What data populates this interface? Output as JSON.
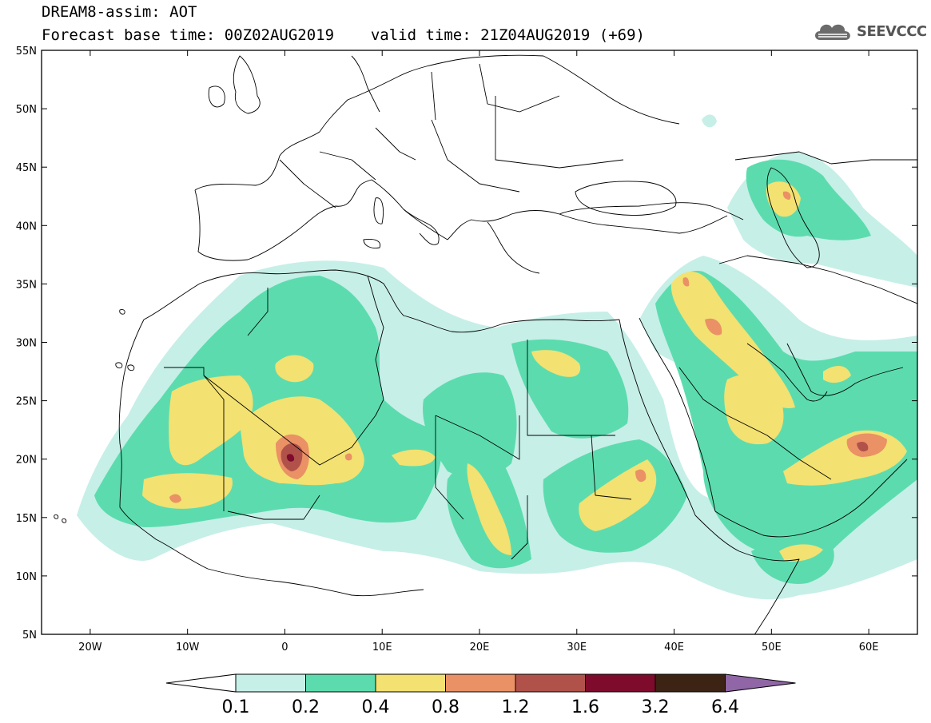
{
  "header": {
    "title_line1": "DREAM8-assim: AOT",
    "base_time": "Forecast base time: 00Z02AUG2019",
    "valid_time": "valid time: 21Z04AUG2019 (+69)"
  },
  "logo": {
    "text": "SEEVCCC",
    "icon": "cloud-icon"
  },
  "map": {
    "lon_range": [
      -25,
      65
    ],
    "lat_range": [
      5,
      55
    ],
    "lat_ticks": [
      "5N",
      "10N",
      "15N",
      "20N",
      "25N",
      "30N",
      "35N",
      "40N",
      "45N",
      "50N",
      "55N"
    ],
    "lon_ticks": [
      "20W",
      "10W",
      "0",
      "10E",
      "20E",
      "30E",
      "40E",
      "50E",
      "60E"
    ]
  },
  "colorbar": {
    "labels": [
      "0.1",
      "0.2",
      "0.4",
      "0.8",
      "1.2",
      "1.6",
      "3.2",
      "6.4"
    ],
    "colors": [
      "#ffffff",
      "#c6efe7",
      "#5cdcae",
      "#f3e171",
      "#ea9166",
      "#b1524a",
      "#7e0a2c",
      "#3c2314",
      "#9066a6"
    ]
  }
}
